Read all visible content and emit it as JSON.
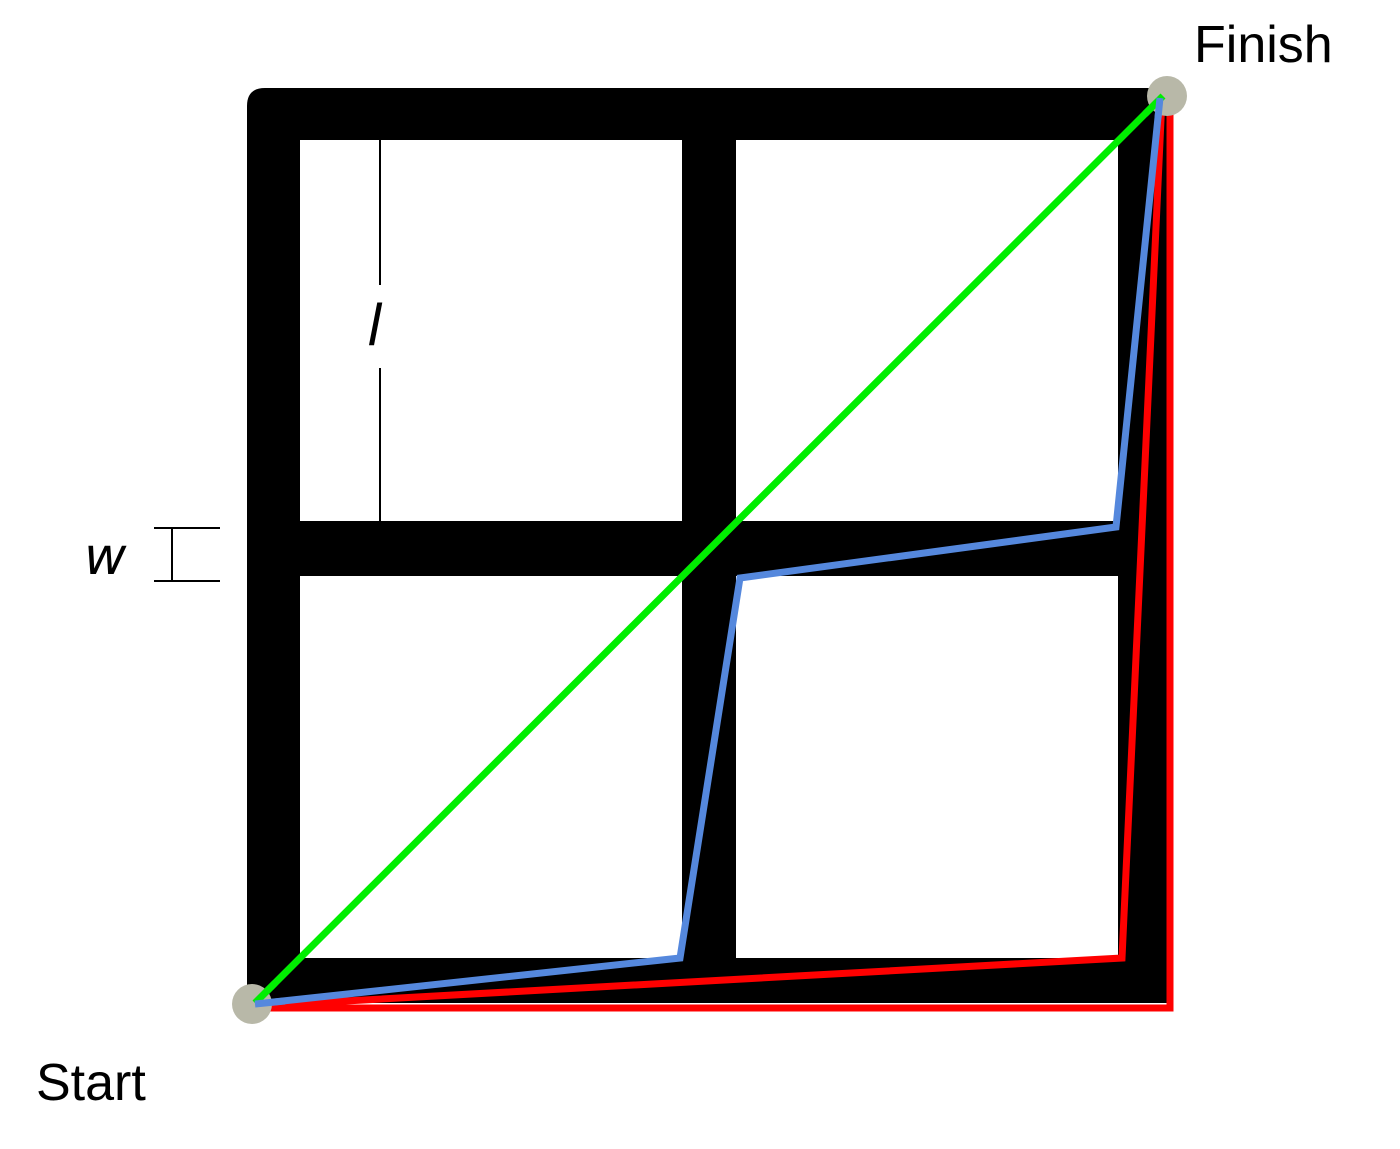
{
  "labels": {
    "finish": "Finish",
    "start": "Start",
    "length_symbol": "l",
    "width_symbol": "w"
  },
  "colors": {
    "grid": "#000000",
    "path_direct": "#00ee00",
    "path_middle": "#5588dd",
    "path_edge": "#ff0000",
    "endpoint": "#b8b8a8",
    "background": "#ffffff"
  },
  "paths": [
    {
      "id": "direct-path",
      "color_key": "path_direct"
    },
    {
      "id": "middle-path",
      "color_key": "path_middle"
    },
    {
      "id": "edge-path",
      "color_key": "path_edge"
    }
  ]
}
